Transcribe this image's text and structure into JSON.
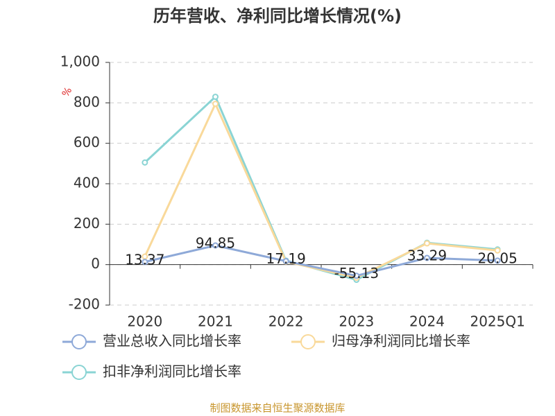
{
  "chart_data": {
    "type": "line",
    "title": "历年营收、净利同比增长情况(%)",
    "y_label": "%",
    "categories": [
      "2020",
      "2021",
      "2022",
      "2023",
      "2024",
      "2025Q1"
    ],
    "series": [
      {
        "name": "营业总收入同比增长率",
        "color": "#8ea9d8",
        "values": [
          13.37,
          94.85,
          17.19,
          -55.13,
          33.29,
          20.05
        ]
      },
      {
        "name": "归母净利润同比增长率",
        "color": "#f9d99a",
        "values": [
          40,
          795,
          15,
          -65,
          105,
          70
        ]
      },
      {
        "name": "扣非净利润同比增长率",
        "color": "#8ad4d4",
        "values": [
          505,
          830,
          20,
          -75,
          108,
          75
        ]
      }
    ],
    "ylim": [
      -200,
      1000
    ],
    "yticks": [
      -200,
      0,
      200,
      400,
      600,
      800,
      {
        "value": 1000,
        "label": "1,000"
      }
    ],
    "grid": true,
    "legend": "bottom",
    "source": "制图数据来自恒生聚源数据库"
  }
}
